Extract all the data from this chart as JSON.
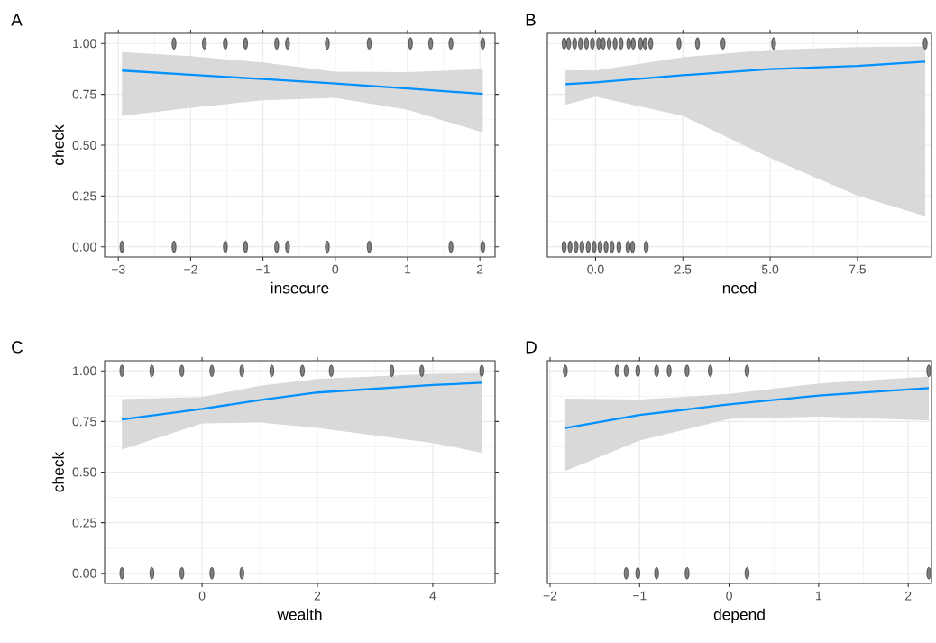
{
  "chart_data": [
    {
      "type": "line",
      "title": "A",
      "xlabel": "insecure",
      "ylabel": "check",
      "grid": true,
      "xlim": [
        -3.19,
        2.21
      ],
      "xticks": [
        {
          "value": -3,
          "label": "−3"
        },
        {
          "value": -2,
          "label": "−2"
        },
        {
          "value": -1,
          "label": "−1"
        },
        0,
        1,
        2
      ],
      "ylim": [
        -0.05,
        1.05
      ],
      "yticks": [
        {
          "value": 0,
          "label": "0.00"
        },
        {
          "value": 0.25,
          "label": "0.25"
        },
        {
          "value": 0.5,
          "label": "0.50"
        },
        {
          "value": 0.75,
          "label": "0.75"
        },
        {
          "value": 1,
          "label": "1.00"
        }
      ],
      "series": [
        {
          "color": "#0091ff",
          "x": [
            -2.95,
            -2,
            -1,
            0,
            1,
            2.04
          ],
          "values": [
            0.867,
            0.846,
            0.825,
            0.803,
            0.779,
            0.752
          ],
          "upper": [
            0.958,
            0.938,
            0.907,
            0.862,
            0.859,
            0.874
          ],
          "lower": [
            0.644,
            0.684,
            0.721,
            0.733,
            0.674,
            0.563
          ]
        },
        {
          "type": "scatter",
          "color": "#7f7f7f",
          "x": [
            -2.23,
            -1.81,
            -1.52,
            -1.24,
            -0.81,
            -0.66,
            -0.11,
            0.47,
            1.04,
            1.32,
            1.6,
            2.04,
            -2.95,
            -2.23,
            -1.52,
            -1.24,
            -0.81,
            -0.66,
            -0.11,
            0.47,
            1.6,
            2.04
          ],
          "values": [
            1,
            1,
            1,
            1,
            1,
            1,
            1,
            1,
            1,
            1,
            1,
            1,
            0,
            0,
            0,
            0,
            0,
            0,
            0,
            0,
            0,
            0
          ]
        }
      ]
    },
    {
      "type": "line",
      "title": "B",
      "xlabel": "need",
      "grid": true,
      "tick_labels": "x",
      "xlim": [
        -1.38,
        9.62
      ],
      "xticks": [
        {
          "value": 0,
          "label": "0.0"
        },
        {
          "value": 2.5,
          "label": "2.5"
        },
        {
          "value": 5,
          "label": "5.0"
        },
        {
          "value": 7.5,
          "label": "7.5"
        }
      ],
      "ylim": [
        -0.05,
        1.05
      ],
      "yticks": [
        0,
        0.25,
        0.5,
        0.75,
        1
      ],
      "series": [
        {
          "color": "#0091ff",
          "x": [
            -0.86,
            0,
            2.5,
            5,
            7.5,
            9.44
          ],
          "values": [
            0.8,
            0.809,
            0.844,
            0.874,
            0.89,
            0.911
          ],
          "upper": [
            0.869,
            0.867,
            0.933,
            0.969,
            0.982,
            0.986
          ],
          "lower": [
            0.699,
            0.738,
            0.644,
            0.437,
            0.252,
            0.151
          ]
        },
        {
          "type": "scatter",
          "color": "#7f7f7f",
          "x": [
            -0.9,
            -0.77,
            -0.6,
            -0.43,
            -0.26,
            -0.09,
            0.09,
            0.22,
            0.39,
            0.56,
            0.73,
            0.95,
            1.08,
            1.29,
            1.42,
            1.58,
            2.39,
            2.92,
            3.65,
            5.1,
            9.44,
            -0.9,
            -0.73,
            -0.56,
            -0.39,
            -0.21,
            -0.04,
            0.13,
            0.3,
            0.47,
            0.67,
            0.93,
            1.06,
            1.45
          ],
          "values": [
            1,
            1,
            1,
            1,
            1,
            1,
            1,
            1,
            1,
            1,
            1,
            1,
            1,
            1,
            1,
            1,
            1,
            1,
            1,
            1,
            1,
            0,
            0,
            0,
            0,
            0,
            0,
            0,
            0,
            0,
            0,
            0,
            0,
            0
          ]
        }
      ]
    },
    {
      "type": "line",
      "title": "C",
      "xlabel": "wealth",
      "ylabel": "check",
      "grid": true,
      "xlim": [
        -1.69,
        5.08
      ],
      "xticks": [
        0,
        2,
        4
      ],
      "ylim": [
        -0.05,
        1.05
      ],
      "yticks": [
        {
          "value": 0,
          "label": "0.00"
        },
        {
          "value": 0.25,
          "label": "0.25"
        },
        {
          "value": 0.5,
          "label": "0.50"
        },
        {
          "value": 0.75,
          "label": "0.75"
        },
        {
          "value": 1,
          "label": "1.00"
        }
      ],
      "series": [
        {
          "color": "#0091ff",
          "x": [
            -1.39,
            0,
            1,
            2,
            4,
            4.85
          ],
          "values": [
            0.76,
            0.812,
            0.856,
            0.893,
            0.93,
            0.941
          ],
          "upper": [
            0.861,
            0.871,
            0.926,
            0.96,
            0.985,
            0.99
          ],
          "lower": [
            0.611,
            0.741,
            0.745,
            0.718,
            0.644,
            0.596
          ]
        },
        {
          "type": "scatter",
          "color": "#7f7f7f",
          "x": [
            -1.39,
            -0.87,
            -0.35,
            0.17,
            0.69,
            1.21,
            1.74,
            2.24,
            3.29,
            3.81,
            4.85,
            -1.39,
            -0.87,
            -0.35,
            0.17,
            0.69
          ],
          "values": [
            1,
            1,
            1,
            1,
            1,
            1,
            1,
            1,
            1,
            1,
            1,
            0,
            0,
            0,
            0,
            0
          ]
        }
      ]
    },
    {
      "type": "line",
      "title": "D",
      "xlabel": "depend",
      "grid": true,
      "tick_labels": "x",
      "xlim": [
        -2.03,
        2.26
      ],
      "xticks": [
        {
          "value": -2,
          "label": "−2"
        },
        {
          "value": -1,
          "label": "−1"
        },
        0,
        1,
        2
      ],
      "ylim": [
        -0.05,
        1.05
      ],
      "yticks": [
        0,
        0.25,
        0.5,
        0.75,
        1
      ],
      "series": [
        {
          "color": "#0091ff",
          "x": [
            -1.83,
            -1,
            0,
            1,
            2.23
          ],
          "values": [
            0.718,
            0.782,
            0.834,
            0.878,
            0.915
          ],
          "upper": [
            0.863,
            0.858,
            0.886,
            0.938,
            0.972
          ],
          "lower": [
            0.505,
            0.656,
            0.763,
            0.774,
            0.755
          ]
        },
        {
          "type": "scatter",
          "color": "#7f7f7f",
          "x": [
            -1.83,
            -1.25,
            -1.15,
            -1.02,
            -0.81,
            -0.67,
            -0.47,
            -0.21,
            0.2,
            2.23,
            -1.15,
            -1.02,
            -0.81,
            -0.47,
            0.2,
            2.23
          ],
          "values": [
            1,
            1,
            1,
            1,
            1,
            1,
            1,
            1,
            1,
            1,
            0,
            0,
            0,
            0,
            0,
            0
          ]
        }
      ]
    }
  ]
}
